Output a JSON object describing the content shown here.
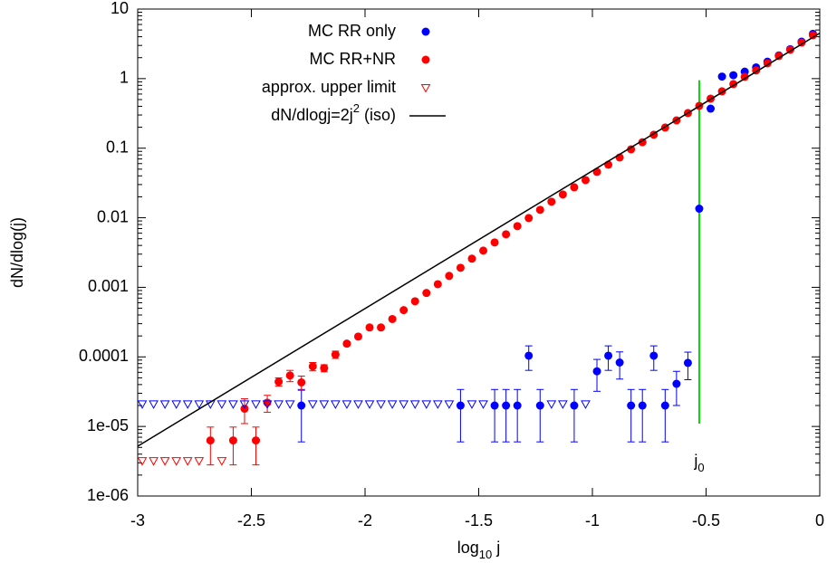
{
  "chart_data": {
    "type": "scatter",
    "xlabel": [
      "log",
      "10",
      " j"
    ],
    "ylabel": "dN/dlog(j)",
    "xlim": [
      -3,
      0
    ],
    "ylim": [
      1e-06,
      10
    ],
    "log_y": true,
    "xticks": [
      -3,
      -2.5,
      -2,
      -1.5,
      -1,
      -0.5,
      0
    ],
    "yticks": [
      {
        "value": 1e-06,
        "label": "1e-06"
      },
      {
        "value": 1e-05,
        "label": "1e-05"
      },
      0.0001,
      0.001,
      0.01,
      0.1,
      1,
      10
    ],
    "legend": "top-right",
    "series": [
      {
        "name": "MC RR only",
        "color": "#0000ff",
        "marker": "circle",
        "x": [
          -2.28,
          -1.58,
          -1.43,
          -1.38,
          -1.33,
          -1.28,
          -1.23,
          -1.08,
          -0.98,
          -0.93,
          -0.88,
          -0.83,
          -0.78,
          -0.73,
          -0.68,
          -0.63,
          -0.58,
          -0.53,
          -0.48,
          -0.43,
          -0.38,
          -0.33,
          -0.28,
          -0.23,
          -0.18,
          -0.13,
          -0.08,
          -0.03
        ],
        "values": [
          2e-05,
          2e-05,
          2e-05,
          2e-05,
          2e-05,
          0.000104,
          2e-05,
          2e-05,
          6.2e-05,
          0.000104,
          8.3e-05,
          2e-05,
          2e-05,
          0.000104,
          2e-05,
          4.1e-05,
          8.2e-05,
          0.0135,
          0.37,
          1.07,
          1.12,
          1.26,
          1.45,
          1.75,
          2.15,
          2.65,
          3.4,
          4.4
        ],
        "errors": [
          1.4e-05,
          1.4e-05,
          1.4e-05,
          1.4e-05,
          1.4e-05,
          4e-05,
          1.4e-05,
          1.4e-05,
          3e-05,
          4e-05,
          3.5e-05,
          1.4e-05,
          1.4e-05,
          4e-05,
          1.4e-05,
          2.1e-05,
          3.5e-05,
          0,
          0,
          0,
          0,
          0,
          0,
          0,
          0,
          0,
          0,
          0
        ]
      },
      {
        "name": "MC RR+NR",
        "color": "#ff0000",
        "marker": "circle",
        "x": [
          -2.68,
          -2.58,
          -2.53,
          -2.48,
          -2.43,
          -2.38,
          -2.33,
          -2.28,
          -2.23,
          -2.18,
          -2.13,
          -2.08,
          -2.03,
          -1.98,
          -1.93,
          -1.88,
          -1.83,
          -1.78,
          -1.73,
          -1.68,
          -1.63,
          -1.58,
          -1.53,
          -1.48,
          -1.43,
          -1.38,
          -1.33,
          -1.28,
          -1.23,
          -1.18,
          -1.13,
          -1.08,
          -1.03,
          -0.98,
          -0.93,
          -0.88,
          -0.83,
          -0.78,
          -0.73,
          -0.68,
          -0.63,
          -0.58,
          -0.53,
          -0.48,
          -0.43,
          -0.38,
          -0.33,
          -0.28,
          -0.23,
          -0.18,
          -0.13,
          -0.08,
          -0.03
        ],
        "values": [
          6.3e-06,
          6.3e-06,
          1.8e-05,
          6.3e-06,
          2.2e-05,
          4.4e-05,
          5.4e-05,
          4.3e-05,
          7.3e-05,
          6.9e-05,
          0.000108,
          0.000155,
          0.000196,
          0.000265,
          0.000265,
          0.00035,
          0.00047,
          0.00063,
          0.00083,
          0.00111,
          0.00146,
          0.00191,
          0.00258,
          0.00337,
          0.00442,
          0.00578,
          0.00757,
          0.0099,
          0.013,
          0.017,
          0.0216,
          0.0274,
          0.0348,
          0.0456,
          0.058,
          0.0736,
          0.0964,
          0.122,
          0.156,
          0.198,
          0.251,
          0.32,
          0.406,
          0.516,
          0.656,
          0.834,
          1.06,
          1.31,
          1.66,
          2.11,
          2.6,
          3.3,
          4.2
        ],
        "errors": [
          3.5e-06,
          3.5e-06,
          7e-06,
          3.5e-06,
          6e-06,
          6e-06,
          1e-05,
          1e-05,
          1e-05,
          8e-06,
          1.3e-05,
          1e-05,
          1e-05,
          1.5e-05,
          1.5e-05,
          1.5e-05,
          0,
          0,
          0,
          0,
          0,
          0,
          0,
          0,
          0,
          0,
          0,
          0,
          0,
          0,
          0,
          0,
          0,
          0,
          0,
          0,
          0,
          0,
          0,
          0,
          0,
          0,
          0,
          0,
          0,
          0,
          0,
          0,
          0,
          0,
          0,
          0,
          0
        ]
      },
      {
        "name": "approx. upper limit",
        "color": "#ff0000",
        "marker": "triangle-down",
        "x": [
          -2.98,
          -2.93,
          -2.88,
          -2.83,
          -2.78,
          -2.73,
          -2.63
        ],
        "values": [
          3.2e-06,
          3.2e-06,
          3.2e-06,
          3.2e-06,
          3.2e-06,
          3.2e-06,
          3.2e-06
        ]
      },
      {
        "color": "#0000ff",
        "marker": "triangle-down",
        "x": [
          -2.98,
          -2.93,
          -2.88,
          -2.83,
          -2.78,
          -2.73,
          -2.68,
          -2.63,
          -2.58,
          -2.53,
          -2.48,
          -2.43,
          -2.38,
          -2.33,
          -2.23,
          -2.18,
          -2.13,
          -2.08,
          -2.03,
          -1.98,
          -1.93,
          -1.88,
          -1.83,
          -1.78,
          -1.73,
          -1.68,
          -1.63,
          -1.53,
          -1.48,
          -1.18,
          -1.13,
          -1.03
        ],
        "values": [
          2.1e-05,
          2.1e-05,
          2.1e-05,
          2.1e-05,
          2.1e-05,
          2.1e-05,
          2.1e-05,
          2.1e-05,
          2.1e-05,
          2.1e-05,
          2.1e-05,
          2.1e-05,
          2.1e-05,
          2.1e-05,
          2.1e-05,
          2.1e-05,
          2.1e-05,
          2.1e-05,
          2.1e-05,
          2.1e-05,
          2.1e-05,
          2.1e-05,
          2.1e-05,
          2.1e-05,
          2.1e-05,
          2.1e-05,
          2.1e-05,
          2.1e-05,
          2.1e-05,
          2.1e-05,
          2.1e-05,
          2.1e-05
        ]
      },
      {
        "name": [
          "dN/dlogj=2j",
          "2",
          " (iso)"
        ],
        "color": "#000000",
        "marker": "line",
        "x": [
          -3,
          0
        ],
        "values": [
          5.2e-06,
          4.5
        ]
      }
    ],
    "vline": {
      "x": -0.53,
      "y": [
        1.1e-05,
        0.95
      ],
      "color": "#00dd00",
      "label": [
        "j",
        "0"
      ]
    }
  }
}
